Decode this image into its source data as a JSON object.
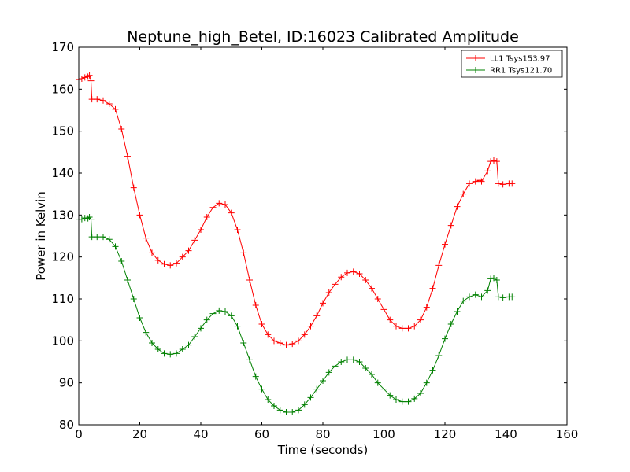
{
  "chart_data": {
    "type": "line",
    "title": "Neptune_high_Betel, ID:16023 Calibrated Amplitude",
    "xlabel": "Time (seconds)",
    "ylabel": "Power in Kelvin",
    "xlim": [
      0,
      160
    ],
    "ylim": [
      80,
      170
    ],
    "xticks": [
      "0",
      "20",
      "40",
      "60",
      "80",
      "100",
      "120",
      "140",
      "160"
    ],
    "yticks": [
      "80",
      "90",
      "100",
      "110",
      "120",
      "130",
      "140",
      "150",
      "160",
      "170"
    ],
    "grid": false,
    "legend_position": "top-right",
    "marker": "+",
    "series": [
      {
        "name": "LL1 Tsys153.97",
        "color": "#ff0000",
        "points": [
          [
            0,
            162.3
          ],
          [
            1,
            162.5
          ],
          [
            2,
            162.8
          ],
          [
            3,
            163.0
          ],
          [
            3.5,
            163.3
          ],
          [
            4,
            162.0
          ],
          [
            4.3,
            157.6
          ],
          [
            6,
            157.6
          ],
          [
            8,
            157.3
          ],
          [
            10,
            156.5
          ],
          [
            12,
            155.2
          ],
          [
            14,
            150.5
          ],
          [
            16,
            144.0
          ],
          [
            18,
            136.5
          ],
          [
            20,
            130.0
          ],
          [
            22,
            124.5
          ],
          [
            24,
            121.0
          ],
          [
            26,
            119.2
          ],
          [
            28,
            118.3
          ],
          [
            30,
            118.0
          ],
          [
            32,
            118.5
          ],
          [
            34,
            120.0
          ],
          [
            36,
            121.5
          ],
          [
            38,
            124.0
          ],
          [
            40,
            126.5
          ],
          [
            42,
            129.5
          ],
          [
            44,
            131.8
          ],
          [
            46,
            132.8
          ],
          [
            48,
            132.5
          ],
          [
            50,
            130.5
          ],
          [
            52,
            126.5
          ],
          [
            54,
            121.0
          ],
          [
            56,
            114.5
          ],
          [
            58,
            108.5
          ],
          [
            60,
            104.0
          ],
          [
            62,
            101.5
          ],
          [
            64,
            100.0
          ],
          [
            66,
            99.5
          ],
          [
            68,
            99.0
          ],
          [
            70,
            99.3
          ],
          [
            72,
            100.0
          ],
          [
            74,
            101.5
          ],
          [
            76,
            103.5
          ],
          [
            78,
            106.0
          ],
          [
            80,
            109.0
          ],
          [
            82,
            111.5
          ],
          [
            84,
            113.5
          ],
          [
            86,
            115.2
          ],
          [
            88,
            116.2
          ],
          [
            90,
            116.5
          ],
          [
            92,
            116.0
          ],
          [
            94,
            114.5
          ],
          [
            96,
            112.5
          ],
          [
            98,
            110.0
          ],
          [
            100,
            107.5
          ],
          [
            102,
            105.0
          ],
          [
            104,
            103.5
          ],
          [
            106,
            103.0
          ],
          [
            108,
            103.0
          ],
          [
            110,
            103.5
          ],
          [
            112,
            105.0
          ],
          [
            114,
            108.0
          ],
          [
            116,
            112.5
          ],
          [
            118,
            118.0
          ],
          [
            120,
            123.0
          ],
          [
            122,
            127.5
          ],
          [
            124,
            132.0
          ],
          [
            126,
            135.0
          ],
          [
            128,
            137.5
          ],
          [
            130,
            138.0
          ],
          [
            131.5,
            138.3
          ],
          [
            132,
            138.0
          ],
          [
            134,
            140.5
          ],
          [
            135,
            142.8
          ],
          [
            136,
            143.0
          ],
          [
            137,
            142.8
          ],
          [
            137.5,
            137.5
          ],
          [
            139,
            137.3
          ],
          [
            141,
            137.5
          ],
          [
            142,
            137.5
          ]
        ]
      },
      {
        "name": "RR1 Tsys121.70",
        "color": "#008000",
        "points": [
          [
            0,
            129.0
          ],
          [
            1,
            129.0
          ],
          [
            2,
            129.3
          ],
          [
            3,
            129.2
          ],
          [
            3.5,
            129.5
          ],
          [
            4,
            129.0
          ],
          [
            4.3,
            124.8
          ],
          [
            6,
            124.8
          ],
          [
            8,
            124.8
          ],
          [
            10,
            124.2
          ],
          [
            12,
            122.5
          ],
          [
            14,
            119.0
          ],
          [
            16,
            114.5
          ],
          [
            18,
            110.0
          ],
          [
            20,
            105.5
          ],
          [
            22,
            102.0
          ],
          [
            24,
            99.5
          ],
          [
            26,
            98.0
          ],
          [
            28,
            97.0
          ],
          [
            30,
            96.8
          ],
          [
            32,
            97.0
          ],
          [
            34,
            98.0
          ],
          [
            36,
            99.0
          ],
          [
            38,
            101.0
          ],
          [
            40,
            103.0
          ],
          [
            42,
            105.0
          ],
          [
            44,
            106.5
          ],
          [
            46,
            107.2
          ],
          [
            48,
            107.0
          ],
          [
            50,
            106.0
          ],
          [
            52,
            103.5
          ],
          [
            54,
            99.5
          ],
          [
            56,
            95.5
          ],
          [
            58,
            91.5
          ],
          [
            60,
            88.5
          ],
          [
            62,
            86.0
          ],
          [
            64,
            84.5
          ],
          [
            66,
            83.5
          ],
          [
            68,
            83.0
          ],
          [
            70,
            83.0
          ],
          [
            72,
            83.5
          ],
          [
            74,
            84.8
          ],
          [
            76,
            86.5
          ],
          [
            78,
            88.5
          ],
          [
            80,
            90.5
          ],
          [
            82,
            92.5
          ],
          [
            84,
            94.0
          ],
          [
            86,
            95.0
          ],
          [
            88,
            95.5
          ],
          [
            90,
            95.5
          ],
          [
            92,
            95.0
          ],
          [
            94,
            93.5
          ],
          [
            96,
            92.0
          ],
          [
            98,
            90.0
          ],
          [
            100,
            88.5
          ],
          [
            102,
            87.0
          ],
          [
            104,
            86.0
          ],
          [
            106,
            85.5
          ],
          [
            108,
            85.5
          ],
          [
            110,
            86.2
          ],
          [
            112,
            87.5
          ],
          [
            114,
            90.0
          ],
          [
            116,
            93.0
          ],
          [
            118,
            96.5
          ],
          [
            120,
            100.5
          ],
          [
            122,
            104.0
          ],
          [
            124,
            107.0
          ],
          [
            126,
            109.5
          ],
          [
            128,
            110.5
          ],
          [
            130,
            111.0
          ],
          [
            132,
            110.5
          ],
          [
            134,
            112.0
          ],
          [
            135,
            114.8
          ],
          [
            136,
            115.0
          ],
          [
            137,
            114.5
          ],
          [
            137.5,
            110.5
          ],
          [
            139,
            110.3
          ],
          [
            141,
            110.5
          ],
          [
            142,
            110.5
          ]
        ]
      }
    ]
  }
}
